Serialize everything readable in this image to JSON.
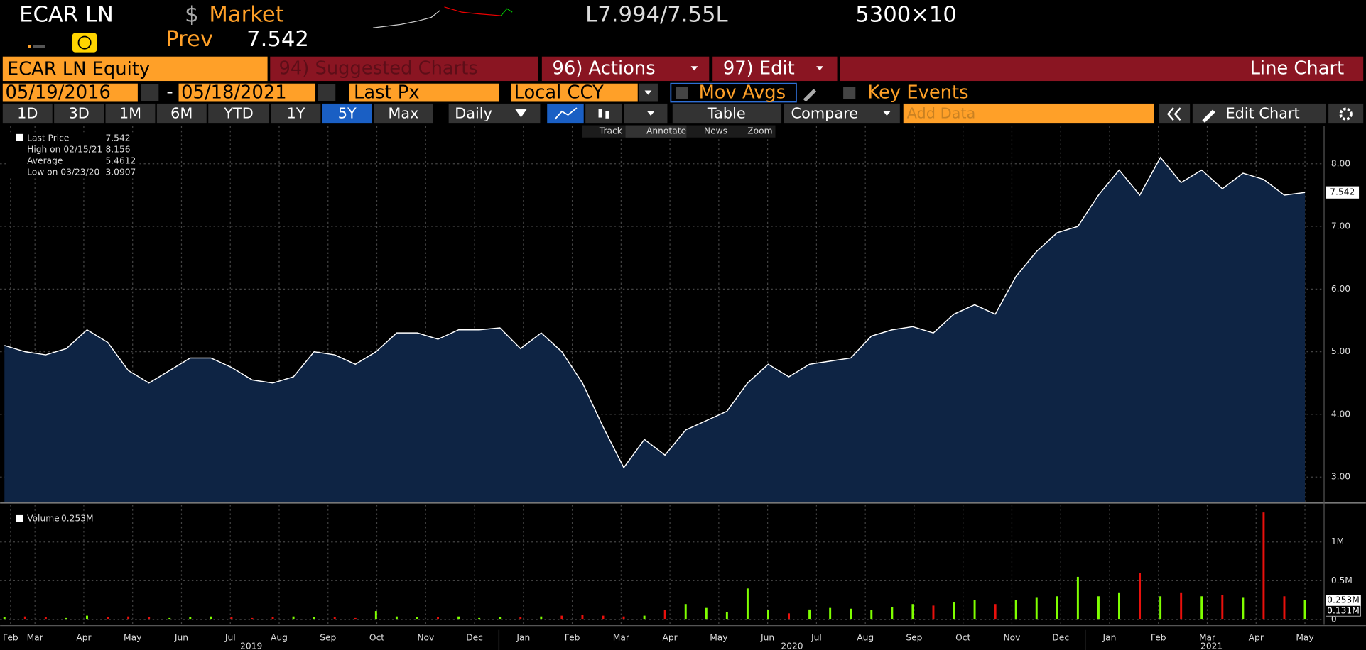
{
  "header": {
    "ticker": "ECAR LN",
    "currency": "$",
    "source": "Market",
    "prev_label": "Prev",
    "prev": "7.542",
    "quote": "L7.994/7.55L",
    "size": "5300×10"
  },
  "toolbar1": {
    "security": "ECAR LN Equity",
    "suggested": "94) Suggested Charts",
    "actions": "96) Actions",
    "edit": "97) Edit",
    "chart_type": "Line Chart"
  },
  "toolbar2": {
    "start": "05/19/2016",
    "dash": "-",
    "end": "05/18/2021",
    "field": "Last Px",
    "ccy": "Local CCY",
    "mov_avgs": "Mov Avgs",
    "key_events": "Key Events"
  },
  "toolbar3": {
    "periods": [
      "1D",
      "3D",
      "1M",
      "6M",
      "YTD",
      "1Y",
      "5Y",
      "Max"
    ],
    "selected": 6,
    "frequency": "Daily",
    "table": "Table",
    "compare": "Compare",
    "add_data": "Add Data",
    "edit_chart": "Edit Chart"
  },
  "tools": [
    "Track",
    "Annotate",
    "News",
    "Zoom"
  ],
  "legend": [
    {
      "label": "Last Price",
      "value": "7.542"
    },
    {
      "label": "High on 02/15/21",
      "value": "8.156"
    },
    {
      "label": "Average",
      "value": "5.4612"
    },
    {
      "label": "Low on 03/23/20",
      "value": "3.0907"
    }
  ],
  "x_axis": {
    "months": [
      "Feb",
      "Mar",
      "Apr",
      "May",
      "Jun",
      "Jul",
      "Aug",
      "Sep",
      "Oct",
      "Nov",
      "Dec",
      "Jan",
      "Feb",
      "Mar",
      "Apr",
      "May",
      "Jun",
      "Jul",
      "Aug",
      "Sep",
      "Oct",
      "Nov",
      "Dec",
      "Jan",
      "Feb",
      "Mar",
      "Apr",
      "May"
    ],
    "years": [
      "2019",
      "2020",
      "2021"
    ]
  },
  "chart_data": [
    {
      "type": "area",
      "name": "Last Price",
      "color": "#ffffff",
      "fill": "#0e2444",
      "values": [
        5.1,
        5.0,
        4.95,
        5.05,
        5.35,
        5.15,
        4.7,
        4.5,
        4.7,
        4.9,
        4.9,
        4.75,
        4.55,
        4.5,
        4.6,
        5.0,
        4.95,
        4.8,
        5.0,
        5.3,
        5.3,
        5.2,
        5.35,
        5.35,
        5.38,
        5.05,
        5.3,
        5.0,
        4.5,
        3.8,
        3.15,
        3.6,
        3.35,
        3.75,
        3.9,
        4.05,
        4.5,
        4.8,
        4.6,
        4.8,
        4.85,
        4.9,
        5.25,
        5.35,
        5.4,
        5.3,
        5.6,
        5.75,
        5.6,
        6.2,
        6.6,
        6.9,
        7.0,
        7.5,
        7.9,
        7.5,
        8.1,
        7.7,
        7.9,
        7.6,
        7.85,
        7.75,
        7.5,
        7.542
      ],
      "ylim": [
        2.6,
        8.6
      ],
      "yticks": [
        {
          "value": 3,
          "label": "3.00"
        },
        {
          "value": 4,
          "label": "4.00"
        },
        {
          "value": 5,
          "label": "5.00"
        },
        {
          "value": 6,
          "label": "6.00"
        },
        {
          "value": 7,
          "label": "7.00"
        },
        {
          "value": 8,
          "label": "8.00"
        }
      ],
      "last_label": "7.542",
      "grid": true
    },
    {
      "type": "bar",
      "name": "Volume",
      "legend_value": "0.253M",
      "up_color": "#7fff00",
      "down_color": "#e8100c",
      "values": [
        0.03,
        0.04,
        0.03,
        0.02,
        0.05,
        0.03,
        0.04,
        0.03,
        0.02,
        0.03,
        0.04,
        0.03,
        0.02,
        0.03,
        0.04,
        0.03,
        0.03,
        0.02,
        0.11,
        0.04,
        0.03,
        0.03,
        0.04,
        0.02,
        0.03,
        0.03,
        0.04,
        0.05,
        0.06,
        0.05,
        0.04,
        0.05,
        0.12,
        0.2,
        0.15,
        0.1,
        0.4,
        0.12,
        0.08,
        0.13,
        0.15,
        0.14,
        0.12,
        0.16,
        0.2,
        0.18,
        0.22,
        0.25,
        0.2,
        0.25,
        0.28,
        0.3,
        0.55,
        0.3,
        0.35,
        0.6,
        0.3,
        0.35,
        0.3,
        0.32,
        0.28,
        1.38,
        0.3,
        0.25
      ],
      "ylim": [
        0,
        1.48
      ],
      "yticks": [
        0,
        {
          "value": 0.5,
          "label": "0.5M"
        },
        {
          "value": 1,
          "label": "1M"
        }
      ],
      "tags": [
        "0.253M",
        "0.131M"
      ],
      "grid": true
    }
  ]
}
